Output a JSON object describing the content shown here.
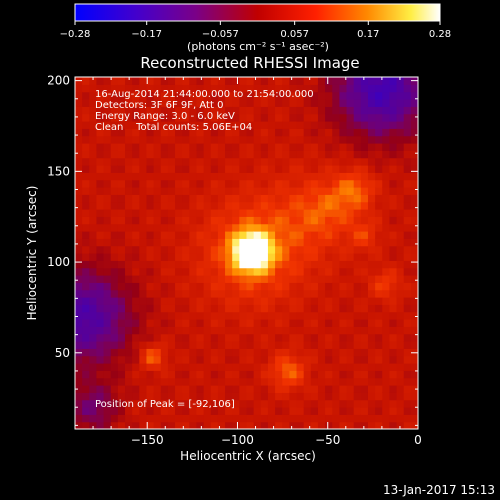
{
  "colorbar": {
    "min": -0.28,
    "max": 0.28,
    "tick_labels": [
      "-0.28",
      "-0.17",
      "-0.057",
      "0.057",
      "0.17",
      "0.28"
    ],
    "unit_label": "(photons cm⁻² s⁻¹ asec⁻²)"
  },
  "chart_data": {
    "type": "heatmap",
    "title": "Reconstructed RHESSI Image",
    "xlabel": "Heliocentric X (arcsec)",
    "ylabel": "Heliocentric Y (arcsec)",
    "xlim": [
      -190,
      0
    ],
    "ylim": [
      8,
      202
    ],
    "x_ticks": [
      -150,
      -100,
      -50,
      0
    ],
    "y_ticks": [
      50,
      100,
      150,
      200
    ],
    "x_tick_labels": [
      "−150",
      "−100",
      "−50",
      "0"
    ],
    "y_tick_labels": [
      "50",
      "100",
      "150",
      "200"
    ],
    "annotations": [
      "16-Aug-2014 21:44:00.000 to 21:54:00.000",
      "Detectors: 3F 6F 9F, Att 0",
      "Energy Range: 3.0 - 6.0 keV",
      "Clean    Total counts: 5.06E+04"
    ],
    "peak_label": "Position of Peak = [-92,106]",
    "peak": {
      "x": -92,
      "y": 106,
      "value": 0.28
    },
    "sources": [
      {
        "x": -92,
        "y": 106,
        "sigma": 7,
        "amp": 0.3
      },
      {
        "x": -92,
        "y": 106,
        "sigma": 20,
        "amp": 0.1
      },
      {
        "x": -60,
        "y": 125,
        "sigma": 18,
        "amp": 0.05
      },
      {
        "x": -35,
        "y": 140,
        "sigma": 8,
        "amp": 0.09
      },
      {
        "x": -50,
        "y": 130,
        "sigma": 10,
        "amp": 0.05
      },
      {
        "x": -147,
        "y": 48,
        "sigma": 5,
        "amp": 0.1
      },
      {
        "x": -72,
        "y": 40,
        "sigma": 7,
        "amp": 0.1
      },
      {
        "x": -30,
        "y": 115,
        "sigma": 6,
        "amp": 0.06
      },
      {
        "x": -18,
        "y": 88,
        "sigma": 6,
        "amp": 0.07
      }
    ],
    "background": 0.05,
    "negative_regions": [
      {
        "x": -20,
        "y": 195,
        "sigma": 18,
        "amp": -0.2
      },
      {
        "x": -185,
        "y": 70,
        "sigma": 18,
        "amp": -0.18
      },
      {
        "x": -180,
        "y": 20,
        "sigma": 10,
        "amp": -0.1
      }
    ]
  },
  "footer": {
    "timestamp": "13-Jan-2017 15:13"
  }
}
